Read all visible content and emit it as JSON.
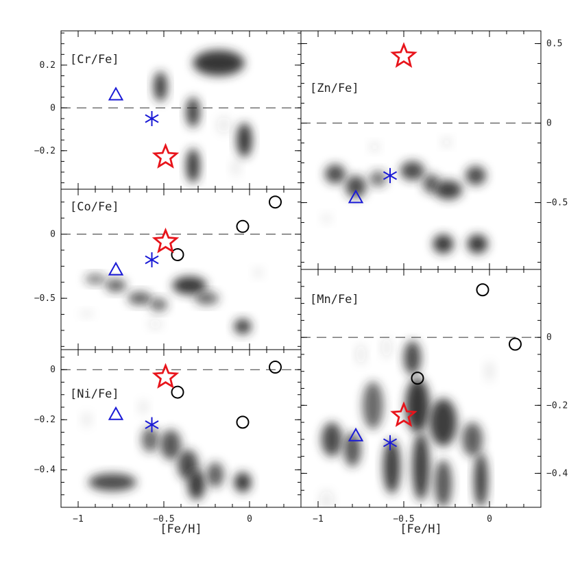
{
  "chart_data": [
    {
      "type": "scatter",
      "title": "",
      "label": "[Cr/Fe]",
      "xlabel": "",
      "ylabel": "",
      "xlim": [
        -1.1,
        0.3
      ],
      "ylim": [
        -0.38,
        0.36
      ],
      "y_ticks": [
        0.2,
        0,
        -0.2
      ],
      "y_tick_labels": [
        "0.2",
        "0",
        "−0.2"
      ],
      "reference_line_y": 0,
      "density_blobs": [
        {
          "x": -0.18,
          "y": 0.21,
          "rx": 0.15,
          "ry": 0.06,
          "opacity": 0.95
        },
        {
          "x": -0.52,
          "y": 0.1,
          "rx": 0.04,
          "ry": 0.07,
          "opacity": 0.9
        },
        {
          "x": -0.33,
          "y": -0.02,
          "rx": 0.04,
          "ry": 0.07,
          "opacity": 0.9
        },
        {
          "x": -0.03,
          "y": -0.15,
          "rx": 0.045,
          "ry": 0.08,
          "opacity": 0.95
        },
        {
          "x": -0.33,
          "y": -0.27,
          "rx": 0.04,
          "ry": 0.08,
          "opacity": 0.95
        },
        {
          "x": -0.15,
          "y": -0.08,
          "rx": 0.04,
          "ry": 0.04,
          "opacity": 0.1
        },
        {
          "x": -0.08,
          "y": -0.28,
          "rx": 0.03,
          "ry": 0.04,
          "opacity": 0.08
        }
      ],
      "series": [
        {
          "marker": "triangle",
          "color": "#1a1ad6",
          "points": [
            {
              "x": -0.78,
              "y": 0.06
            }
          ]
        },
        {
          "marker": "asterisk",
          "color": "#1a1ad6",
          "points": [
            {
              "x": -0.57,
              "y": -0.05
            }
          ]
        },
        {
          "marker": "star",
          "color": "#e8141b",
          "points": [
            {
              "x": -0.49,
              "y": -0.23
            }
          ]
        }
      ]
    },
    {
      "type": "scatter",
      "title": "",
      "label": "[Co/Fe]",
      "xlabel": "",
      "ylabel": "",
      "xlim": [
        -1.1,
        0.3
      ],
      "ylim": [
        -0.9,
        0.35
      ],
      "y_ticks": [
        0,
        -0.5
      ],
      "y_tick_labels": [
        "0",
        "−0.5"
      ],
      "reference_line_y": 0,
      "density_blobs": [
        {
          "x": -0.9,
          "y": -0.35,
          "rx": 0.06,
          "ry": 0.04,
          "opacity": 0.6
        },
        {
          "x": -0.78,
          "y": -0.4,
          "rx": 0.06,
          "ry": 0.05,
          "opacity": 0.75
        },
        {
          "x": -0.64,
          "y": -0.5,
          "rx": 0.07,
          "ry": 0.05,
          "opacity": 0.75
        },
        {
          "x": -0.53,
          "y": -0.55,
          "rx": 0.05,
          "ry": 0.05,
          "opacity": 0.7
        },
        {
          "x": -0.35,
          "y": -0.4,
          "rx": 0.1,
          "ry": 0.07,
          "opacity": 0.95
        },
        {
          "x": -0.25,
          "y": -0.5,
          "rx": 0.07,
          "ry": 0.05,
          "opacity": 0.7
        },
        {
          "x": -0.04,
          "y": -0.72,
          "rx": 0.05,
          "ry": 0.06,
          "opacity": 0.9
        },
        {
          "x": -0.55,
          "y": -0.7,
          "rx": 0.04,
          "ry": 0.04,
          "opacity": 0.1
        },
        {
          "x": 0.05,
          "y": -0.3,
          "rx": 0.03,
          "ry": 0.04,
          "opacity": 0.08
        },
        {
          "x": -0.95,
          "y": -0.62,
          "rx": 0.04,
          "ry": 0.03,
          "opacity": 0.08
        }
      ],
      "series": [
        {
          "marker": "circle",
          "color": "#000000",
          "points": [
            {
              "x": 0.15,
              "y": 0.25
            },
            {
              "x": -0.04,
              "y": 0.06
            },
            {
              "x": -0.42,
              "y": -0.16
            }
          ]
        },
        {
          "marker": "triangle",
          "color": "#1a1ad6",
          "points": [
            {
              "x": -0.78,
              "y": -0.28
            }
          ]
        },
        {
          "marker": "asterisk",
          "color": "#1a1ad6",
          "points": [
            {
              "x": -0.57,
              "y": -0.2
            }
          ]
        },
        {
          "marker": "star",
          "color": "#e8141b",
          "points": [
            {
              "x": -0.49,
              "y": -0.06
            }
          ]
        }
      ]
    },
    {
      "type": "scatter",
      "title": "",
      "label": "[Ni/Fe]",
      "xlabel": "[Fe/H]",
      "ylabel": "",
      "xlim": [
        -1.1,
        0.3
      ],
      "ylim": [
        -0.55,
        0.08
      ],
      "y_ticks": [
        0,
        -0.2,
        -0.4
      ],
      "y_tick_labels": [
        "0",
        "−0.2",
        "−0.4"
      ],
      "x_ticks": [
        -1,
        -0.5,
        0
      ],
      "x_tick_labels": [
        "−1",
        "−0.5",
        "0"
      ],
      "reference_line_y": 0,
      "density_blobs": [
        {
          "x": -0.8,
          "y": -0.45,
          "rx": 0.14,
          "ry": 0.035,
          "opacity": 0.85
        },
        {
          "x": -0.58,
          "y": -0.28,
          "rx": 0.05,
          "ry": 0.05,
          "opacity": 0.7
        },
        {
          "x": -0.46,
          "y": -0.3,
          "rx": 0.06,
          "ry": 0.06,
          "opacity": 0.8
        },
        {
          "x": -0.36,
          "y": -0.38,
          "rx": 0.06,
          "ry": 0.06,
          "opacity": 0.85
        },
        {
          "x": -0.31,
          "y": -0.46,
          "rx": 0.05,
          "ry": 0.06,
          "opacity": 0.95
        },
        {
          "x": -0.2,
          "y": -0.42,
          "rx": 0.05,
          "ry": 0.05,
          "opacity": 0.75
        },
        {
          "x": -0.04,
          "y": -0.45,
          "rx": 0.05,
          "ry": 0.04,
          "opacity": 0.95
        },
        {
          "x": -0.95,
          "y": -0.2,
          "rx": 0.03,
          "ry": 0.03,
          "opacity": 0.08
        },
        {
          "x": -0.62,
          "y": -0.15,
          "rx": 0.03,
          "ry": 0.03,
          "opacity": 0.08
        }
      ],
      "series": [
        {
          "marker": "circle",
          "color": "#000000",
          "points": [
            {
              "x": 0.15,
              "y": 0.01
            },
            {
              "x": -0.42,
              "y": -0.09
            },
            {
              "x": -0.04,
              "y": -0.21
            }
          ]
        },
        {
          "marker": "triangle",
          "color": "#1a1ad6",
          "points": [
            {
              "x": -0.78,
              "y": -0.18
            }
          ]
        },
        {
          "marker": "asterisk",
          "color": "#1a1ad6",
          "points": [
            {
              "x": -0.57,
              "y": -0.22
            }
          ]
        },
        {
          "marker": "star",
          "color": "#e8141b",
          "points": [
            {
              "x": -0.49,
              "y": -0.03
            }
          ]
        }
      ]
    },
    {
      "type": "scatter",
      "title": "",
      "label": "[Zn/Fe]",
      "xlabel": "",
      "ylabel": "",
      "xlim": [
        -1.1,
        0.3
      ],
      "ylim": [
        -0.92,
        0.58
      ],
      "y_ticks": [
        0.5,
        0,
        -0.5
      ],
      "y_tick_labels": [
        "0.5",
        "0",
        "−0.5"
      ],
      "reference_line_y": 0,
      "density_blobs": [
        {
          "x": -0.9,
          "y": -0.32,
          "rx": 0.06,
          "ry": 0.06,
          "opacity": 0.85
        },
        {
          "x": -0.78,
          "y": -0.4,
          "rx": 0.06,
          "ry": 0.07,
          "opacity": 0.85
        },
        {
          "x": -0.65,
          "y": -0.35,
          "rx": 0.05,
          "ry": 0.05,
          "opacity": 0.65
        },
        {
          "x": -0.45,
          "y": -0.3,
          "rx": 0.07,
          "ry": 0.06,
          "opacity": 0.85
        },
        {
          "x": -0.34,
          "y": -0.38,
          "rx": 0.05,
          "ry": 0.06,
          "opacity": 0.75
        },
        {
          "x": -0.24,
          "y": -0.42,
          "rx": 0.08,
          "ry": 0.06,
          "opacity": 0.9
        },
        {
          "x": -0.08,
          "y": -0.33,
          "rx": 0.06,
          "ry": 0.06,
          "opacity": 0.85
        },
        {
          "x": -0.27,
          "y": -0.76,
          "rx": 0.06,
          "ry": 0.06,
          "opacity": 0.95
        },
        {
          "x": -0.07,
          "y": -0.76,
          "rx": 0.06,
          "ry": 0.06,
          "opacity": 0.95
        },
        {
          "x": -0.67,
          "y": -0.15,
          "rx": 0.03,
          "ry": 0.03,
          "opacity": 0.1
        },
        {
          "x": -0.25,
          "y": -0.12,
          "rx": 0.03,
          "ry": 0.03,
          "opacity": 0.1
        },
        {
          "x": -0.95,
          "y": -0.6,
          "rx": 0.03,
          "ry": 0.03,
          "opacity": 0.08
        }
      ],
      "series": [
        {
          "marker": "triangle",
          "color": "#1a1ad6",
          "points": [
            {
              "x": -0.78,
              "y": -0.47
            }
          ]
        },
        {
          "marker": "asterisk",
          "color": "#1a1ad6",
          "points": [
            {
              "x": -0.58,
              "y": -0.33
            }
          ]
        },
        {
          "marker": "star",
          "color": "#e8141b",
          "points": [
            {
              "x": -0.5,
              "y": 0.42
            }
          ]
        }
      ]
    },
    {
      "type": "scatter",
      "title": "",
      "label": "[Mn/Fe]",
      "xlabel": "[Fe/H]",
      "ylabel": "",
      "xlim": [
        -1.1,
        0.3
      ],
      "ylim": [
        -0.5,
        0.2
      ],
      "y_ticks": [
        0,
        -0.2,
        -0.4
      ],
      "y_tick_labels": [
        "0",
        "−0.2",
        "−0.4"
      ],
      "x_ticks": [
        -1,
        -0.5,
        0
      ],
      "x_tick_labels": [
        "−1",
        "−0.5",
        "0"
      ],
      "reference_line_y": 0,
      "density_blobs": [
        {
          "x": -0.92,
          "y": -0.3,
          "rx": 0.06,
          "ry": 0.05,
          "opacity": 0.85
        },
        {
          "x": -0.8,
          "y": -0.33,
          "rx": 0.05,
          "ry": 0.05,
          "opacity": 0.8
        },
        {
          "x": -0.68,
          "y": -0.2,
          "rx": 0.06,
          "ry": 0.07,
          "opacity": 0.7
        },
        {
          "x": -0.57,
          "y": -0.38,
          "rx": 0.05,
          "ry": 0.08,
          "opacity": 0.9
        },
        {
          "x": -0.45,
          "y": -0.06,
          "rx": 0.05,
          "ry": 0.05,
          "opacity": 0.85
        },
        {
          "x": -0.42,
          "y": -0.2,
          "rx": 0.07,
          "ry": 0.08,
          "opacity": 0.95
        },
        {
          "x": -0.4,
          "y": -0.38,
          "rx": 0.05,
          "ry": 0.1,
          "opacity": 0.9
        },
        {
          "x": -0.27,
          "y": -0.25,
          "rx": 0.08,
          "ry": 0.07,
          "opacity": 0.9
        },
        {
          "x": -0.27,
          "y": -0.43,
          "rx": 0.05,
          "ry": 0.07,
          "opacity": 0.8
        },
        {
          "x": -0.1,
          "y": -0.3,
          "rx": 0.06,
          "ry": 0.05,
          "opacity": 0.75
        },
        {
          "x": -0.05,
          "y": -0.42,
          "rx": 0.04,
          "ry": 0.08,
          "opacity": 0.9
        },
        {
          "x": -0.75,
          "y": -0.05,
          "rx": 0.03,
          "ry": 0.03,
          "opacity": 0.1
        },
        {
          "x": -0.6,
          "y": -0.03,
          "rx": 0.03,
          "ry": 0.03,
          "opacity": 0.1
        },
        {
          "x": 0.0,
          "y": -0.1,
          "rx": 0.03,
          "ry": 0.03,
          "opacity": 0.08
        },
        {
          "x": -0.95,
          "y": -0.48,
          "rx": 0.04,
          "ry": 0.03,
          "opacity": 0.1
        }
      ],
      "series": [
        {
          "marker": "circle",
          "color": "#000000",
          "points": [
            {
              "x": -0.04,
              "y": 0.14
            },
            {
              "x": 0.15,
              "y": -0.02
            },
            {
              "x": -0.42,
              "y": -0.12
            }
          ]
        },
        {
          "marker": "triangle",
          "color": "#1a1ad6",
          "points": [
            {
              "x": -0.78,
              "y": -0.29
            }
          ]
        },
        {
          "marker": "asterisk",
          "color": "#1a1ad6",
          "points": [
            {
              "x": -0.58,
              "y": -0.31
            }
          ]
        },
        {
          "marker": "star",
          "color": "#e8141b",
          "points": [
            {
              "x": -0.5,
              "y": -0.23
            }
          ]
        }
      ]
    }
  ],
  "colors": {
    "star": "#e8141b",
    "blue": "#1a1ad6",
    "circle": "#000000",
    "density": "#2a2a2a"
  }
}
